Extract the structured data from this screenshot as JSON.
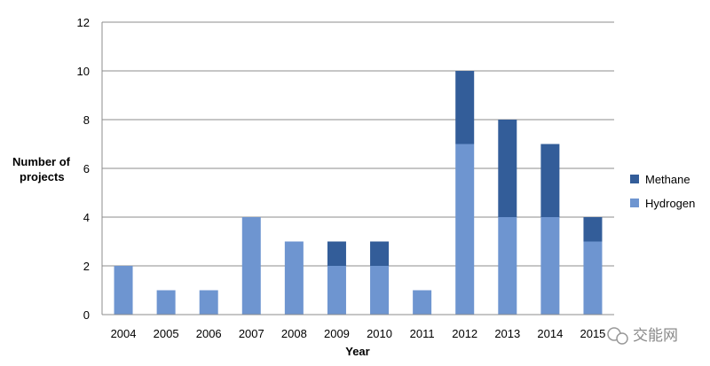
{
  "chart_data": {
    "type": "bar",
    "stacked": true,
    "categories": [
      "2004",
      "2005",
      "2006",
      "2007",
      "2008",
      "2009",
      "2010",
      "2011",
      "2012",
      "2013",
      "2014",
      "2015"
    ],
    "series": [
      {
        "name": "Hydrogen",
        "color": "#6e95d0",
        "values": [
          2,
          1,
          1,
          4,
          3,
          2,
          2,
          1,
          7,
          4,
          4,
          3
        ]
      },
      {
        "name": "Methane",
        "color": "#335d99",
        "values": [
          0,
          0,
          0,
          0,
          0,
          1,
          1,
          0,
          3,
          4,
          3,
          1
        ]
      }
    ],
    "xlabel": "Year",
    "ylabel": "Number of projects",
    "ylim": [
      0,
      12
    ],
    "yticks": [
      "0",
      "2",
      "4",
      "6",
      "8",
      "10",
      "12"
    ],
    "grid": true,
    "legend_position": "right"
  },
  "watermark": {
    "text": "交能网"
  }
}
